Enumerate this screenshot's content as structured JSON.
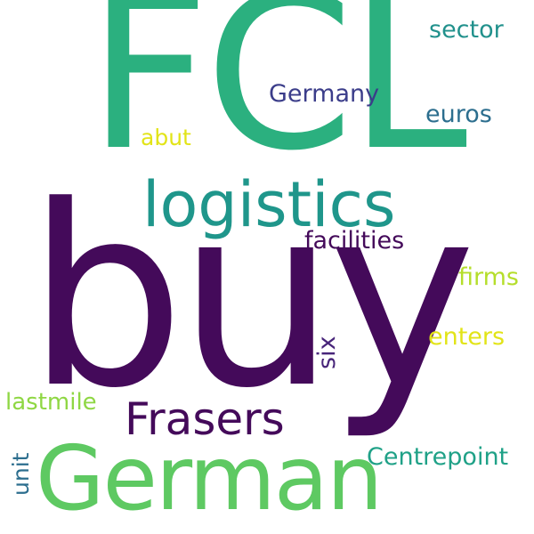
{
  "word_cloud": {
    "words": [
      {
        "id": "fcl",
        "text": "FCL",
        "color": "#2bb07f"
      },
      {
        "id": "buy",
        "text": "buy",
        "color": "#440a5a"
      },
      {
        "id": "logistics",
        "text": "logistics",
        "color": "#1f968b"
      },
      {
        "id": "german",
        "text": "German",
        "color": "#5ec962"
      },
      {
        "id": "frasers",
        "text": "Frasers",
        "color": "#440a5a"
      },
      {
        "id": "germany",
        "text": "Germany",
        "color": "#3b3d8a"
      },
      {
        "id": "sector",
        "text": "sector",
        "color": "#21918c"
      },
      {
        "id": "euros",
        "text": "euros",
        "color": "#2c6e8e"
      },
      {
        "id": "abut",
        "text": "abut",
        "color": "#e2e418"
      },
      {
        "id": "facilities",
        "text": "facilities",
        "color": "#440a5a"
      },
      {
        "id": "firms",
        "text": "firms",
        "color": "#b5de2b"
      },
      {
        "id": "six",
        "text": "six",
        "color": "#48257a"
      },
      {
        "id": "enters",
        "text": "enters",
        "color": "#e2e418"
      },
      {
        "id": "lastmile",
        "text": "lastmile",
        "color": "#8fd744"
      },
      {
        "id": "centrepoint",
        "text": "Centrepoint",
        "color": "#1fa187"
      },
      {
        "id": "unit",
        "text": "unit",
        "color": "#2c6e8e"
      }
    ]
  }
}
